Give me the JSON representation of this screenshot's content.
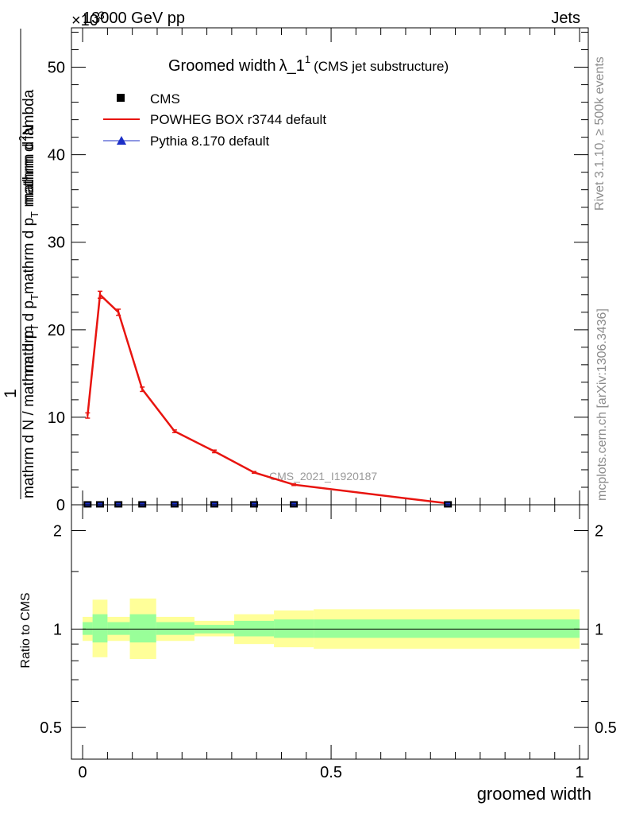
{
  "header": {
    "energy_label": "13000 GeV pp",
    "exponent_label": "×10",
    "exponent_power": "3",
    "process_label": "Jets"
  },
  "side_labels": {
    "rivet": "Rivet 3.1.10, ≥ 500k events",
    "mcplots": "mcplots.cern.ch [arXiv:1306.3436]"
  },
  "watermark": "CMS_2021_I1920187",
  "colors": {
    "data": "#000000",
    "powheg": "#e8140f",
    "pythia": "#1c2fc7",
    "band_outer": "#ffff99",
    "band_inner": "#99ff99"
  },
  "chart_data": [
    {
      "type": "line",
      "title": "Groomed width",
      "title_symbol": "λ_1",
      "title_power": "1",
      "subtitle": "(CMS jet substructure)",
      "ylabel_numerator": "1",
      "ylabel_denominator": "mathrm d N / mathrm d p",
      "ylabel_denominator_sub": "T",
      "ylabel_numerator2": "mathrm d",
      "ylabel_numerator2_power": "2",
      "ylabel_numerator2_tail": "N",
      "ylabel_denominator2": "mathrm d p",
      "ylabel_denominator2_sub": "T",
      "ylabel_denominator2_tail": "mathrm d p",
      "ylabel_denominator2_sub2": "T",
      "ylabel_denominator2_end": " mathrm d lambda",
      "xlim": [
        0,
        1
      ],
      "ylim": [
        0,
        54.5
      ],
      "yticks": [
        0,
        10,
        20,
        30,
        40,
        50
      ],
      "legend_placement": "top-left",
      "series": [
        {
          "name": "CMS",
          "style": "square markers",
          "x": [
            0.01,
            0.035,
            0.072,
            0.12,
            0.185,
            0.265,
            0.345,
            0.425,
            0.735
          ],
          "y": [
            0.05,
            0.05,
            0.05,
            0.05,
            0.05,
            0.05,
            0.05,
            0.05,
            0.05
          ]
        },
        {
          "name": "POWHEG BOX r3744 default",
          "style": "line",
          "x": [
            0.01,
            0.035,
            0.072,
            0.12,
            0.185,
            0.265,
            0.345,
            0.425,
            0.735
          ],
          "y": [
            10.2,
            24.0,
            22.0,
            13.2,
            8.4,
            6.1,
            3.7,
            2.3,
            0.15
          ],
          "err": [
            0.3,
            0.4,
            0.35,
            0.25,
            0.15,
            0.15,
            0.1,
            0.1,
            0.05
          ]
        },
        {
          "name": "Pythia 8.170 default",
          "style": "triangle markers",
          "x": [],
          "y": []
        }
      ]
    },
    {
      "type": "area",
      "xlabel": "groomed width",
      "ylabel": "Ratio to CMS",
      "xlim": [
        0,
        1
      ],
      "ylim": [
        0.4,
        2.4
      ],
      "log_y": true,
      "yticks": [
        0.5,
        1,
        2
      ],
      "xticks": [
        0,
        0.5,
        1
      ],
      "bins": [
        {
          "lo": 0.0,
          "hi": 0.02,
          "inner": [
            0.96,
            1.05
          ],
          "outer": [
            0.92,
            1.09
          ]
        },
        {
          "lo": 0.02,
          "hi": 0.05,
          "inner": [
            0.91,
            1.11
          ],
          "outer": [
            0.82,
            1.23
          ]
        },
        {
          "lo": 0.05,
          "hi": 0.095,
          "inner": [
            0.96,
            1.05
          ],
          "outer": [
            0.92,
            1.09
          ]
        },
        {
          "lo": 0.095,
          "hi": 0.148,
          "inner": [
            0.91,
            1.11
          ],
          "outer": [
            0.81,
            1.24
          ]
        },
        {
          "lo": 0.148,
          "hi": 0.225,
          "inner": [
            0.96,
            1.05
          ],
          "outer": [
            0.92,
            1.09
          ]
        },
        {
          "lo": 0.225,
          "hi": 0.305,
          "inner": [
            0.97,
            1.03
          ],
          "outer": [
            0.95,
            1.06
          ]
        },
        {
          "lo": 0.305,
          "hi": 0.385,
          "inner": [
            0.95,
            1.06
          ],
          "outer": [
            0.9,
            1.11
          ]
        },
        {
          "lo": 0.385,
          "hi": 0.465,
          "inner": [
            0.94,
            1.07
          ],
          "outer": [
            0.88,
            1.14
          ]
        },
        {
          "lo": 0.465,
          "hi": 1.0,
          "inner": [
            0.94,
            1.07
          ],
          "outer": [
            0.87,
            1.15
          ]
        }
      ],
      "ratio_line": 1
    }
  ]
}
